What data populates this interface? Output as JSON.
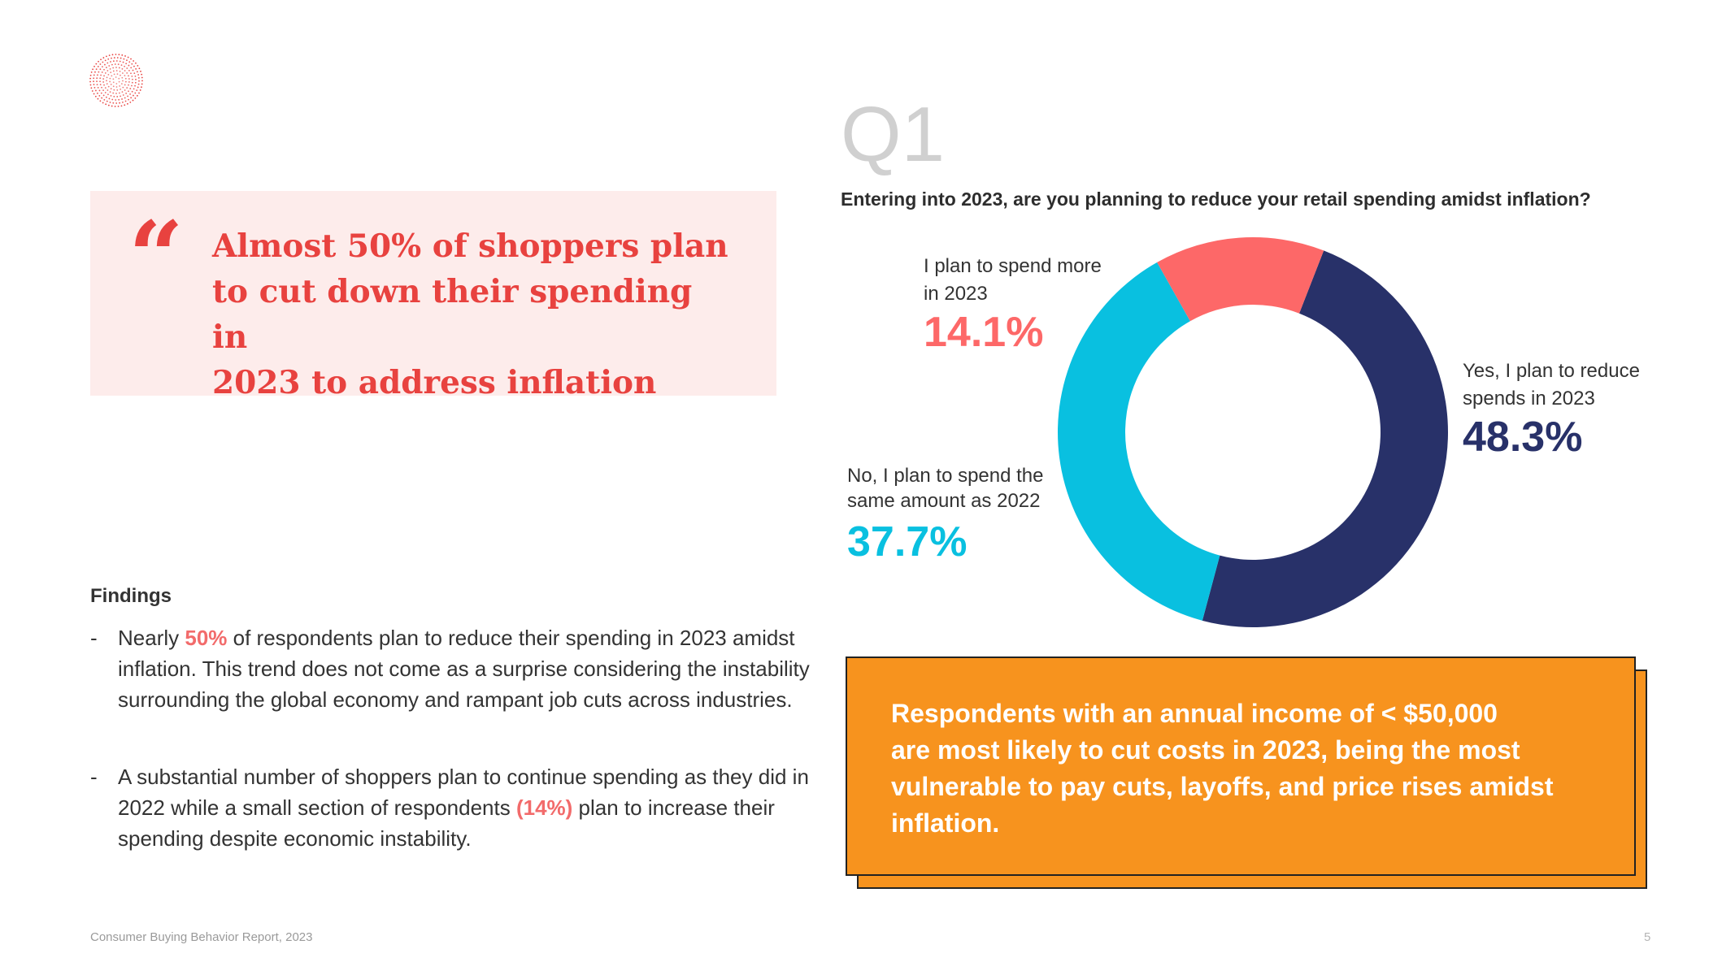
{
  "logo": {
    "icon": "dotted-circle-logo-icon",
    "color": "#e8423f"
  },
  "quote": {
    "mark": "“",
    "lines": [
      "Almost 50% of shoppers plan",
      "to cut down their spending in",
      "2023 to address inflation"
    ]
  },
  "findings": {
    "title": "Findings",
    "items": [
      {
        "dash": "-",
        "pre": "Nearly ",
        "highlight": "50%",
        "post": " of respondents plan to reduce their spending in 2023 amidst inflation. This trend does not come as a surprise considering the instability surrounding the global economy and rampant job cuts across industries."
      },
      {
        "dash": "-",
        "pre": "A substantial number of shoppers plan to continue spending as they did in 2022 while a small section of respondents ",
        "highlight": "(14%)",
        "post": " plan to increase their spending despite economic instability."
      }
    ]
  },
  "question": {
    "number": "Q1",
    "text": "Entering into 2023, are you planning to reduce your retail spending amidst inflation?"
  },
  "chart_data": {
    "type": "pie",
    "subtype": "donut",
    "title": "Entering into 2023, are you planning to reduce your retail spending amidst inflation?",
    "slices": [
      {
        "label_lines": [
          "Yes, I plan to  reduce",
          "spends in 2023"
        ],
        "value": 48.3,
        "value_label": "48.3%",
        "color": "#283169"
      },
      {
        "label_lines": [
          "No, I plan to spend the",
          "same amount as 2022"
        ],
        "value": 37.7,
        "value_label": "37.7%",
        "color": "#09c0e0"
      },
      {
        "label_lines": [
          "I plan to spend more",
          "in 2023"
        ],
        "value": 14.1,
        "value_label": "14.1%",
        "color": "#fd6868"
      }
    ]
  },
  "callout": {
    "lines": [
      "Respondents with an annual income of < $50,000",
      "are most likely to cut costs in 2023, being the most",
      "vulnerable to pay cuts, layoffs, and price rises amidst",
      "inflation."
    ]
  },
  "footer": {
    "report": "Consumer Buying Behavior Report, 2023",
    "page": "5"
  }
}
